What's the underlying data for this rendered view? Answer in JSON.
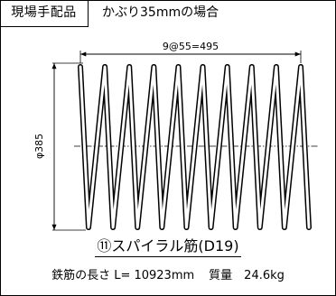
{
  "header": {
    "tag": "現場手配品",
    "title": "かぶり35mmの場合"
  },
  "dimensions": {
    "pitch_label": "9@55=495",
    "diameter_label": "φ385"
  },
  "spiral": {
    "turns": 10
  },
  "caption": {
    "text": "⑪スパイラル筋(D19)"
  },
  "summary": {
    "length_label": "鉄筋の長さ L= 10923mm",
    "mass_label": "質量　24.6kg"
  }
}
